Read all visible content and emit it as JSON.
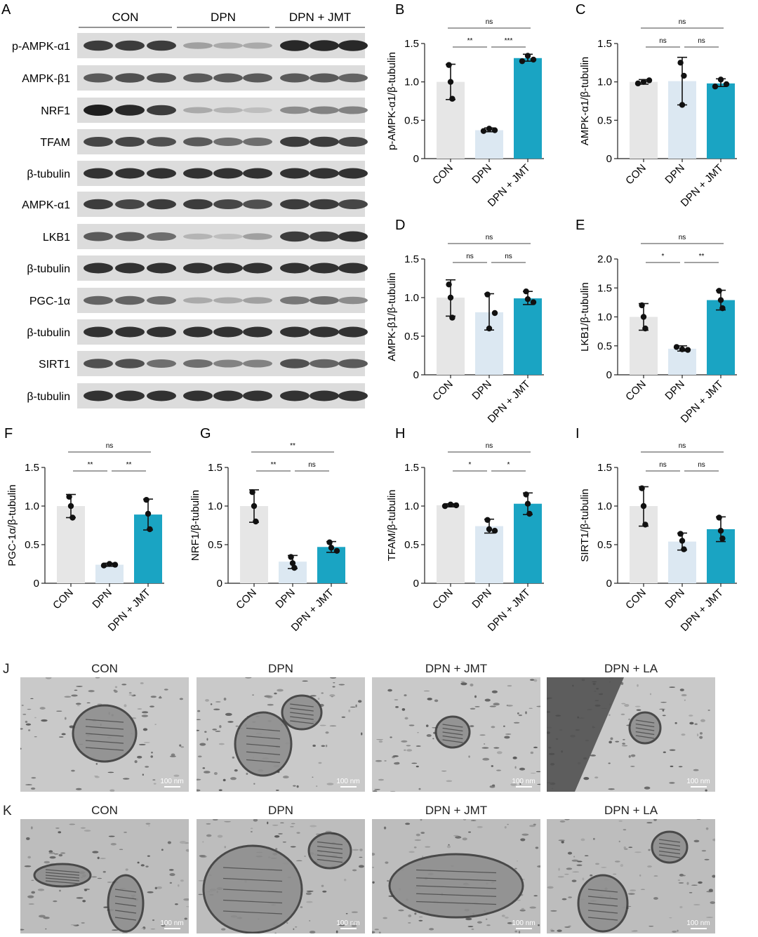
{
  "western_blot": {
    "panel_label": "A",
    "groups": [
      "CON",
      "DPN",
      "DPN + JMT"
    ],
    "rows": [
      {
        "label": "p-AMPK-α1",
        "intensity": [
          0.85,
          0.85,
          0.85,
          0.35,
          0.3,
          0.3,
          0.95,
          0.95,
          0.95
        ]
      },
      {
        "label": "AMPK-β1",
        "intensity": [
          0.7,
          0.75,
          0.75,
          0.7,
          0.7,
          0.7,
          0.7,
          0.7,
          0.65
        ]
      },
      {
        "label": "NRF1",
        "intensity": [
          1.0,
          0.95,
          0.85,
          0.3,
          0.25,
          0.2,
          0.45,
          0.5,
          0.5
        ]
      },
      {
        "label": "TFAM",
        "intensity": [
          0.8,
          0.8,
          0.75,
          0.7,
          0.6,
          0.6,
          0.85,
          0.85,
          0.8
        ]
      },
      {
        "label": "β-tubulin",
        "intensity": [
          0.9,
          0.9,
          0.9,
          0.9,
          0.9,
          0.9,
          0.9,
          0.9,
          0.9
        ]
      },
      {
        "label": "AMPK-α1",
        "intensity": [
          0.85,
          0.8,
          0.85,
          0.85,
          0.8,
          0.75,
          0.85,
          0.85,
          0.8
        ]
      },
      {
        "label": "LKB1",
        "intensity": [
          0.7,
          0.7,
          0.6,
          0.25,
          0.2,
          0.35,
          0.85,
          0.85,
          0.9
        ]
      },
      {
        "label": "β-tubulin",
        "intensity": [
          0.9,
          0.9,
          0.9,
          0.9,
          0.9,
          0.9,
          0.9,
          0.9,
          0.9
        ]
      },
      {
        "label": "PGC-1α",
        "intensity": [
          0.65,
          0.65,
          0.6,
          0.3,
          0.3,
          0.35,
          0.55,
          0.6,
          0.45
        ]
      },
      {
        "label": "β-tubulin",
        "intensity": [
          0.9,
          0.9,
          0.9,
          0.9,
          0.9,
          0.9,
          0.9,
          0.9,
          0.9
        ]
      },
      {
        "label": "SIRT1",
        "intensity": [
          0.75,
          0.75,
          0.6,
          0.6,
          0.5,
          0.5,
          0.75,
          0.65,
          0.7
        ]
      },
      {
        "label": "β-tubulin",
        "intensity": [
          0.9,
          0.9,
          0.9,
          0.9,
          0.9,
          0.9,
          0.9,
          0.9,
          0.9
        ]
      }
    ]
  },
  "colors": {
    "CON": "#e6e6e6",
    "DPN": "#dce8f2",
    "DPN + JMT": "#1aa4c3"
  },
  "chart_data": [
    {
      "panel": "B",
      "type": "bar",
      "categories": [
        "CON",
        "DPN",
        "DPN + JMT"
      ],
      "ylabel": "p-AMPK-α1/β-tubulin",
      "ylim": [
        0,
        1.5
      ],
      "yticks": [
        0,
        0.5,
        1.0,
        1.5
      ],
      "yticklabels": [
        "0",
        "0.5",
        "1.0",
        "1.5"
      ],
      "values": [
        1.0,
        0.37,
        1.31
      ],
      "err_low": [
        0.77,
        0.35,
        1.27
      ],
      "err_high": [
        1.23,
        0.4,
        1.36
      ],
      "points": [
        [
          1.22,
          1.0,
          0.78
        ],
        [
          0.36,
          0.39,
          0.37
        ],
        [
          1.27,
          1.34,
          1.29
        ]
      ],
      "sig": [
        {
          "from": 0,
          "to": 1,
          "label": "**",
          "level": 1
        },
        {
          "from": 1,
          "to": 2,
          "label": "***",
          "level": 1
        },
        {
          "from": 0,
          "to": 2,
          "label": "ns",
          "level": 2
        }
      ]
    },
    {
      "panel": "C",
      "type": "bar",
      "categories": [
        "CON",
        "DPN",
        "DPN + JMT"
      ],
      "ylabel": "AMPK-α1/β-tubulin",
      "ylim": [
        0,
        1.5
      ],
      "yticks": [
        0,
        0.5,
        1.0,
        1.5
      ],
      "yticklabels": [
        "0",
        "0.5",
        "1.0",
        "1.5"
      ],
      "values": [
        1.0,
        1.01,
        0.98
      ],
      "err_low": [
        0.97,
        0.7,
        0.94
      ],
      "err_high": [
        1.03,
        1.32,
        1.04
      ],
      "points": [
        [
          0.98,
          1.0,
          1.02
        ],
        [
          1.25,
          0.7,
          1.08
        ],
        [
          0.94,
          1.03,
          0.97
        ]
      ],
      "sig": [
        {
          "from": 0,
          "to": 1,
          "label": "ns",
          "level": 1
        },
        {
          "from": 1,
          "to": 2,
          "label": "ns",
          "level": 1
        },
        {
          "from": 0,
          "to": 2,
          "label": "ns",
          "level": 2
        }
      ]
    },
    {
      "panel": "D",
      "type": "bar",
      "categories": [
        "CON",
        "DPN",
        "DPN + JMT"
      ],
      "ylabel": "AMPK-β1/β-tubulin",
      "ylim": [
        0,
        1.5
      ],
      "yticks": [
        0,
        0.5,
        1.0,
        1.5
      ],
      "yticklabels": [
        "0",
        "0.5",
        "1.0",
        "1.5"
      ],
      "values": [
        1.0,
        0.81,
        0.99
      ],
      "err_low": [
        0.76,
        0.58,
        0.91
      ],
      "err_high": [
        1.23,
        1.05,
        1.08
      ],
      "points": [
        [
          1.17,
          1.0,
          0.74
        ],
        [
          1.04,
          0.6,
          0.8
        ],
        [
          1.08,
          0.98,
          0.94
        ]
      ],
      "sig": [
        {
          "from": 0,
          "to": 1,
          "label": "ns",
          "level": 1
        },
        {
          "from": 1,
          "to": 2,
          "label": "ns",
          "level": 1
        },
        {
          "from": 0,
          "to": 2,
          "label": "ns",
          "level": 2
        }
      ]
    },
    {
      "panel": "E",
      "type": "bar",
      "categories": [
        "CON",
        "DPN",
        "DPN + JMT"
      ],
      "ylabel": "LKB1/β-tubulin",
      "ylim": [
        0,
        2.0
      ],
      "yticks": [
        0,
        0.5,
        1.0,
        1.5,
        2.0
      ],
      "yticklabels": [
        "0",
        "0.5",
        "1.0",
        "1.5",
        "2.0"
      ],
      "values": [
        1.0,
        0.45,
        1.29
      ],
      "err_low": [
        0.77,
        0.41,
        1.12
      ],
      "err_high": [
        1.23,
        0.5,
        1.46
      ],
      "points": [
        [
          1.2,
          1.0,
          0.8
        ],
        [
          0.48,
          0.44,
          0.43
        ],
        [
          1.45,
          1.29,
          1.15
        ]
      ],
      "sig": [
        {
          "from": 0,
          "to": 1,
          "label": "*",
          "level": 1
        },
        {
          "from": 1,
          "to": 2,
          "label": "**",
          "level": 1
        },
        {
          "from": 0,
          "to": 2,
          "label": "ns",
          "level": 2
        }
      ]
    },
    {
      "panel": "F",
      "type": "bar",
      "categories": [
        "CON",
        "DPN",
        "DPN + JMT"
      ],
      "ylabel": "PGC-1α/β-tubulin",
      "ylim": [
        0,
        1.5
      ],
      "yticks": [
        0,
        0.5,
        1.0,
        1.5
      ],
      "yticklabels": [
        "0",
        "0.5",
        "1.0",
        "1.5"
      ],
      "values": [
        1.0,
        0.24,
        0.89
      ],
      "err_low": [
        0.85,
        0.22,
        0.69
      ],
      "err_high": [
        1.15,
        0.26,
        1.09
      ],
      "points": [
        [
          1.12,
          1.0,
          0.85
        ],
        [
          0.23,
          0.25,
          0.24
        ],
        [
          1.08,
          0.9,
          0.7
        ]
      ],
      "sig": [
        {
          "from": 0,
          "to": 1,
          "label": "**",
          "level": 1
        },
        {
          "from": 1,
          "to": 2,
          "label": "**",
          "level": 1
        },
        {
          "from": 0,
          "to": 2,
          "label": "ns",
          "level": 2
        }
      ]
    },
    {
      "panel": "G",
      "type": "bar",
      "categories": [
        "CON",
        "DPN",
        "DPN + JMT"
      ],
      "ylabel": "NRF1/β-tubulin",
      "ylim": [
        0,
        1.5
      ],
      "yticks": [
        0,
        0.5,
        1.0,
        1.5
      ],
      "yticklabels": [
        "0",
        "0.5",
        "1.0",
        "1.5"
      ],
      "values": [
        1.0,
        0.28,
        0.47
      ],
      "err_low": [
        0.79,
        0.19,
        0.4
      ],
      "err_high": [
        1.21,
        0.36,
        0.54
      ],
      "points": [
        [
          1.18,
          1.0,
          0.8
        ],
        [
          0.34,
          0.26,
          0.2
        ],
        [
          0.53,
          0.46,
          0.42
        ]
      ],
      "sig": [
        {
          "from": 0,
          "to": 1,
          "label": "**",
          "level": 1
        },
        {
          "from": 1,
          "to": 2,
          "label": "ns",
          "level": 1
        },
        {
          "from": 0,
          "to": 2,
          "label": "**",
          "level": 2
        }
      ]
    },
    {
      "panel": "H",
      "type": "bar",
      "categories": [
        "CON",
        "DPN",
        "DPN + JMT"
      ],
      "ylabel": "TFAM/β-tubulin",
      "ylim": [
        0,
        1.5
      ],
      "yticks": [
        0,
        0.5,
        1.0,
        1.5
      ],
      "yticklabels": [
        "0",
        "0.5",
        "1.0",
        "1.5"
      ],
      "values": [
        1.01,
        0.74,
        1.03
      ],
      "err_low": [
        0.99,
        0.65,
        0.89
      ],
      "err_high": [
        1.03,
        0.83,
        1.17
      ],
      "points": [
        [
          1.0,
          1.02,
          1.01
        ],
        [
          0.82,
          0.7,
          0.68
        ],
        [
          1.15,
          1.03,
          0.9
        ]
      ],
      "sig": [
        {
          "from": 0,
          "to": 1,
          "label": "*",
          "level": 1
        },
        {
          "from": 1,
          "to": 2,
          "label": "*",
          "level": 1
        },
        {
          "from": 0,
          "to": 2,
          "label": "ns",
          "level": 2
        }
      ]
    },
    {
      "panel": "I",
      "type": "bar",
      "categories": [
        "CON",
        "DPN",
        "DPN + JMT"
      ],
      "ylabel": "SIRT1/β-tubulin",
      "ylim": [
        0,
        1.5
      ],
      "yticks": [
        0,
        0.5,
        1.0,
        1.5
      ],
      "yticklabels": [
        "0",
        "0.5",
        "1.0",
        "1.5"
      ],
      "values": [
        1.0,
        0.54,
        0.7
      ],
      "err_low": [
        0.74,
        0.43,
        0.54
      ],
      "err_high": [
        1.25,
        0.65,
        0.86
      ],
      "points": [
        [
          1.23,
          1.0,
          0.76
        ],
        [
          0.64,
          0.55,
          0.44
        ],
        [
          0.85,
          0.68,
          0.58
        ]
      ],
      "sig": [
        {
          "from": 0,
          "to": 1,
          "label": "ns",
          "level": 1
        },
        {
          "from": 1,
          "to": 2,
          "label": "ns",
          "level": 1
        },
        {
          "from": 0,
          "to": 2,
          "label": "ns",
          "level": 2
        }
      ]
    }
  ],
  "em": {
    "rows": [
      {
        "label": "J",
        "titles": [
          "CON",
          "DPN",
          "DPN + JMT",
          "DPN + LA"
        ],
        "scale": "100 nm"
      },
      {
        "label": "K",
        "titles": [
          "CON",
          "DPN",
          "DPN + JMT",
          "DPN + LA"
        ],
        "scale": "100 nm"
      }
    ]
  }
}
